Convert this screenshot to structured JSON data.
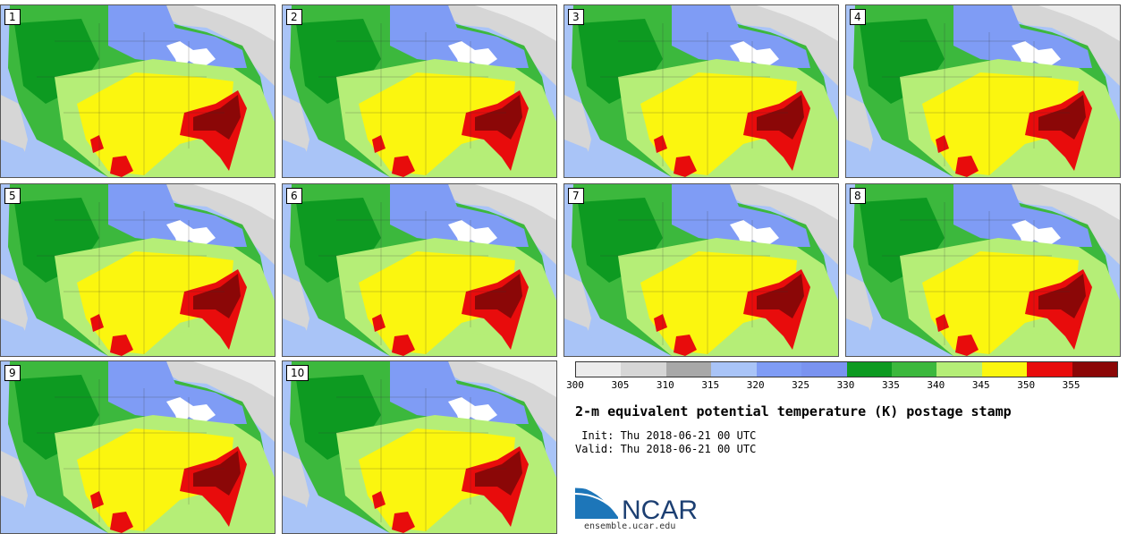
{
  "members": [
    "1",
    "2",
    "3",
    "4",
    "5",
    "6",
    "7",
    "8",
    "9",
    "10"
  ],
  "colorbar": {
    "colors": [
      "#ececec",
      "#d6d6d6",
      "#a8a8a8",
      "#a9c4f7",
      "#7f9cf5",
      "#7a93f0",
      "#0d9a21",
      "#3cb83d",
      "#b5ee77",
      "#fbf60f",
      "#e80c0c",
      "#8b0707"
    ],
    "ticks": [
      "300",
      "305",
      "310",
      "315",
      "320",
      "325",
      "330",
      "335",
      "340",
      "345",
      "350",
      "355"
    ]
  },
  "title": "2-m equivalent potential temperature (K) postage stamp",
  "init": " Init: Thu 2018-06-21 00 UTC",
  "valid": "Valid: Thu 2018-06-21 00 UTC",
  "logo_text": "NCAR",
  "site": "ensemble.ucar.edu"
}
